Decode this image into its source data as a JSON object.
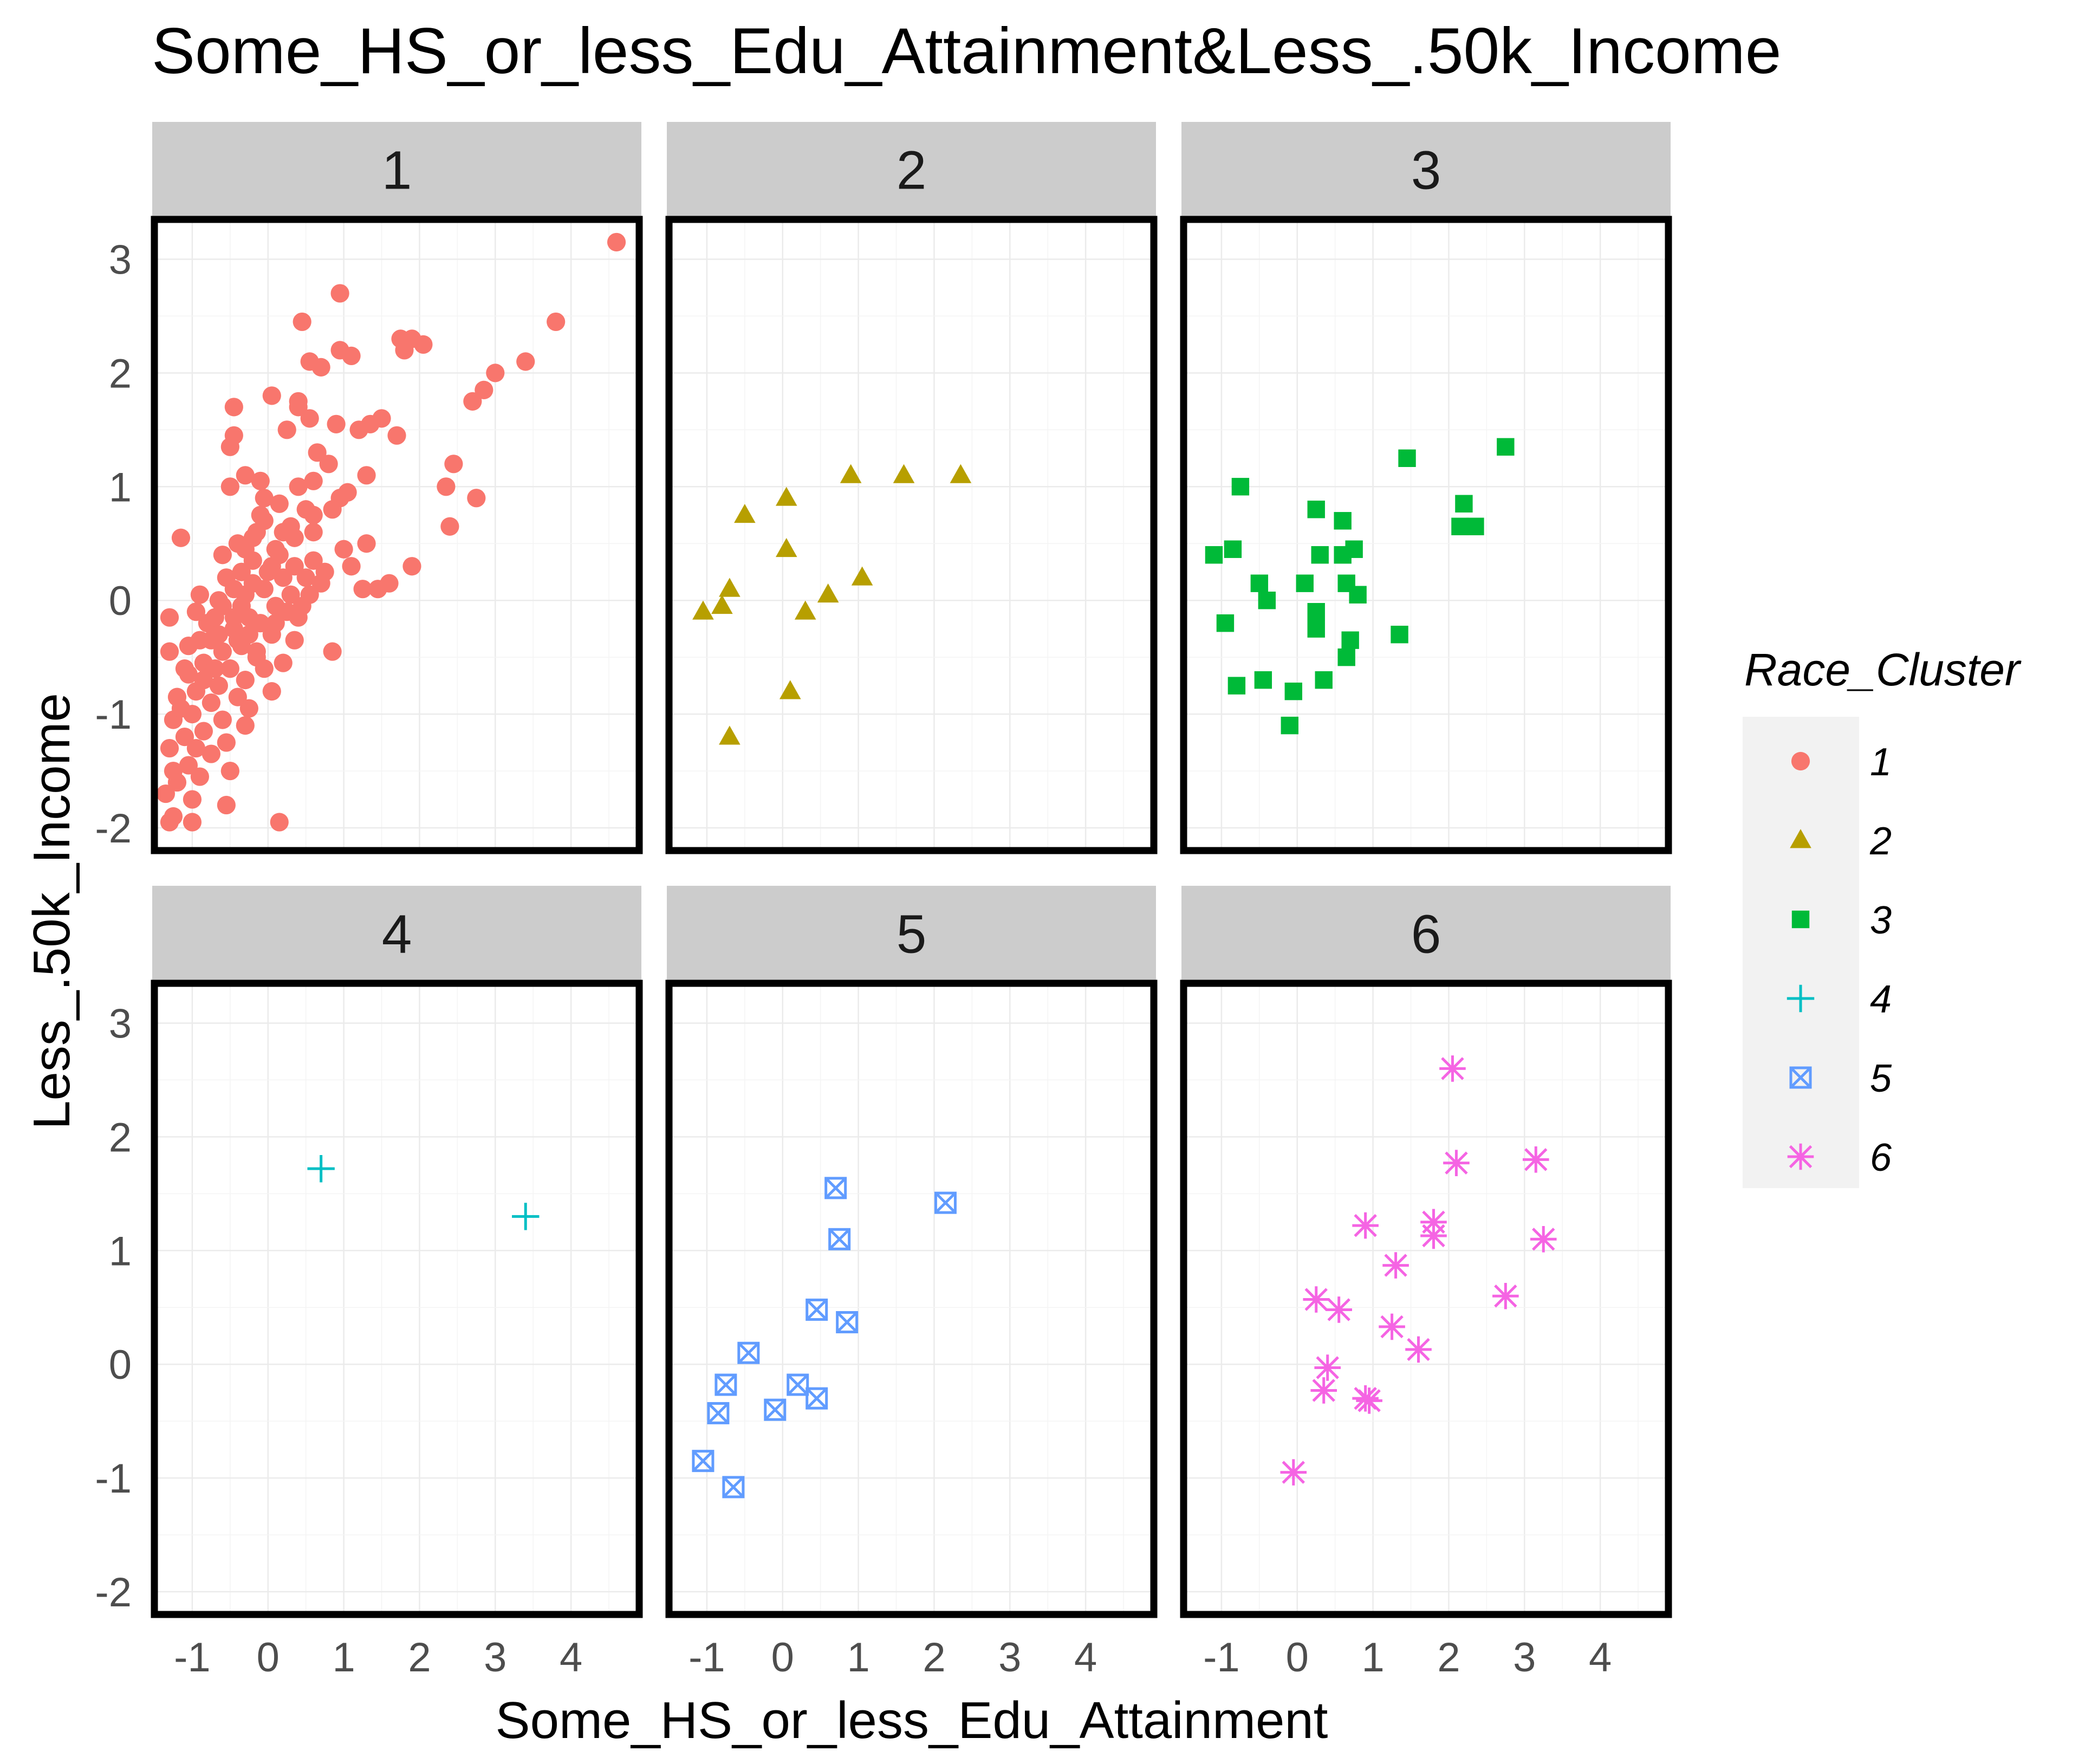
{
  "chart_data": {
    "type": "scatter",
    "title": "Some_HS_or_less_Edu_Attainment&Less_.50k_Income",
    "xlabel": "Some_HS_or_less_Edu_Attainment",
    "ylabel": "Less_.50k_Income",
    "xlim": [
      -1.5,
      4.9
    ],
    "ylim": [
      -2.2,
      3.35
    ],
    "x_ticks": [
      -1,
      0,
      1,
      2,
      3,
      4
    ],
    "y_ticks": [
      -2,
      -1,
      0,
      1,
      2,
      3
    ],
    "x_tick_labels": [
      "-1",
      "0",
      "1",
      "2",
      "3",
      "4"
    ],
    "y_tick_labels": [
      "-2",
      "-1",
      "0",
      "1",
      "2",
      "3"
    ],
    "grid": true,
    "facet_by": "Race_Cluster",
    "legend": {
      "title": "Race_Cluster",
      "position": "right",
      "items": [
        {
          "label": "1",
          "color": "#F8766D",
          "shape": "circle"
        },
        {
          "label": "2",
          "color": "#B79F00",
          "shape": "triangle"
        },
        {
          "label": "3",
          "color": "#00BA38",
          "shape": "square"
        },
        {
          "label": "4",
          "color": "#00BFC4",
          "shape": "plus"
        },
        {
          "label": "5",
          "color": "#619CFF",
          "shape": "square-x"
        },
        {
          "label": "6",
          "color": "#F564E3",
          "shape": "asterisk"
        }
      ]
    },
    "panels": [
      {
        "label": "1",
        "color": "#F8766D",
        "shape": "circle",
        "points": [
          [
            4.6,
            3.15
          ],
          [
            3.8,
            2.45
          ],
          [
            3.4,
            2.1
          ],
          [
            3.0,
            2.0
          ],
          [
            2.85,
            1.85
          ],
          [
            2.7,
            1.75
          ],
          [
            2.45,
            1.2
          ],
          [
            2.35,
            1.0
          ],
          [
            2.4,
            0.65
          ],
          [
            2.75,
            0.9
          ],
          [
            1.9,
            2.3
          ],
          [
            2.05,
            2.25
          ],
          [
            1.8,
            2.2
          ],
          [
            1.75,
            2.3
          ],
          [
            1.5,
            1.6
          ],
          [
            1.35,
            1.55
          ],
          [
            1.2,
            1.5
          ],
          [
            1.3,
            1.1
          ],
          [
            1.7,
            1.45
          ],
          [
            1.6,
            0.15
          ],
          [
            1.45,
            0.1
          ],
          [
            1.3,
            0.5
          ],
          [
            1.25,
            0.1
          ],
          [
            1.9,
            0.3
          ],
          [
            1.1,
            0.3
          ],
          [
            1.0,
            0.45
          ],
          [
            0.85,
            -0.45
          ],
          [
            0.95,
            2.2
          ],
          [
            1.1,
            2.15
          ],
          [
            0.95,
            2.7
          ],
          [
            0.45,
            2.45
          ],
          [
            0.55,
            2.1
          ],
          [
            0.7,
            2.05
          ],
          [
            0.4,
            1.75
          ],
          [
            0.05,
            1.8
          ],
          [
            0.4,
            1.7
          ],
          [
            0.55,
            1.6
          ],
          [
            -0.45,
            1.7
          ],
          [
            -0.45,
            1.45
          ],
          [
            0.9,
            1.55
          ],
          [
            0.25,
            1.5
          ],
          [
            -0.5,
            1.35
          ],
          [
            0.65,
            1.3
          ],
          [
            0.8,
            1.2
          ],
          [
            0.6,
            1.05
          ],
          [
            0.4,
            1.0
          ],
          [
            -0.3,
            1.1
          ],
          [
            -0.1,
            1.05
          ],
          [
            -0.5,
            1.0
          ],
          [
            -0.05,
            0.9
          ],
          [
            0.95,
            0.9
          ],
          [
            1.05,
            0.95
          ],
          [
            0.15,
            0.85
          ],
          [
            0.5,
            0.8
          ],
          [
            0.85,
            0.8
          ],
          [
            -0.05,
            0.7
          ],
          [
            0.3,
            0.65
          ],
          [
            0.6,
            0.6
          ],
          [
            -0.2,
            0.55
          ],
          [
            -1.15,
            0.55
          ],
          [
            -0.4,
            0.5
          ],
          [
            0.1,
            0.45
          ],
          [
            0.6,
            0.35
          ],
          [
            0.35,
            0.3
          ],
          [
            -0.35,
            0.25
          ],
          [
            0.75,
            0.25
          ],
          [
            0.2,
            0.2
          ],
          [
            0.5,
            0.2
          ],
          [
            0.7,
            0.15
          ],
          [
            -0.05,
            0.1
          ],
          [
            0.3,
            0.05
          ],
          [
            0.55,
            0.05
          ],
          [
            -0.9,
            0.05
          ],
          [
            -0.65,
            0.0
          ],
          [
            0.1,
            -0.05
          ],
          [
            -0.6,
            -0.05
          ],
          [
            -0.25,
            -0.15
          ],
          [
            0.4,
            -0.15
          ],
          [
            -0.95,
            -0.1
          ],
          [
            -1.3,
            -0.15
          ],
          [
            -0.45,
            -0.25
          ],
          [
            0.05,
            -0.3
          ],
          [
            0.35,
            -0.35
          ],
          [
            -0.75,
            -0.35
          ],
          [
            -0.35,
            -0.4
          ],
          [
            -1.3,
            -0.45
          ],
          [
            -0.6,
            -0.45
          ],
          [
            -0.15,
            -0.5
          ],
          [
            0.2,
            -0.55
          ],
          [
            -0.85,
            -0.55
          ],
          [
            -0.5,
            -0.6
          ],
          [
            -1.1,
            -0.6
          ],
          [
            -0.3,
            -0.7
          ],
          [
            -0.65,
            -0.75
          ],
          [
            0.05,
            -0.8
          ],
          [
            -0.95,
            -0.8
          ],
          [
            -0.4,
            -0.85
          ],
          [
            -1.2,
            -0.85
          ],
          [
            -0.75,
            -0.9
          ],
          [
            -1.0,
            -1.0
          ],
          [
            -0.6,
            -1.05
          ],
          [
            -1.25,
            -1.05
          ],
          [
            -0.3,
            -1.1
          ],
          [
            -0.85,
            -1.15
          ],
          [
            -1.1,
            -1.2
          ],
          [
            -0.55,
            -1.25
          ],
          [
            -1.3,
            -1.3
          ],
          [
            -0.95,
            -1.3
          ],
          [
            -0.75,
            -1.35
          ],
          [
            -1.05,
            -1.45
          ],
          [
            -1.25,
            -1.5
          ],
          [
            -0.9,
            -1.55
          ],
          [
            -1.2,
            -1.6
          ],
          [
            -1.35,
            -1.7
          ],
          [
            -1.0,
            -1.75
          ],
          [
            -0.55,
            -1.8
          ],
          [
            -1.25,
            -1.9
          ],
          [
            -1.0,
            -1.95
          ],
          [
            -1.3,
            -1.95
          ],
          [
            0.15,
            -1.95
          ],
          [
            -0.2,
            0.35
          ],
          [
            -0.15,
            0.6
          ],
          [
            0.0,
            0.25
          ],
          [
            0.15,
            0.4
          ],
          [
            -0.1,
            -0.2
          ],
          [
            0.25,
            -0.1
          ],
          [
            -0.3,
            0.05
          ],
          [
            -0.55,
            0.2
          ],
          [
            -0.8,
            -0.2
          ],
          [
            -1.05,
            -0.4
          ],
          [
            -0.7,
            -0.6
          ],
          [
            -0.4,
            -0.35
          ],
          [
            0.2,
            0.6
          ],
          [
            -0.25,
            -0.95
          ],
          [
            -0.85,
            -0.7
          ],
          [
            -1.15,
            -0.95
          ],
          [
            -0.45,
            0.1
          ],
          [
            0.45,
            -0.05
          ],
          [
            -0.05,
            -0.6
          ],
          [
            -0.6,
            0.4
          ],
          [
            0.05,
            0.3
          ],
          [
            -0.2,
            0.15
          ],
          [
            -0.35,
            -0.05
          ],
          [
            -0.7,
            -0.15
          ],
          [
            -0.9,
            -0.35
          ],
          [
            -1.05,
            -0.65
          ],
          [
            -0.5,
            -1.5
          ],
          [
            -0.15,
            -0.45
          ],
          [
            0.6,
            0.75
          ],
          [
            -0.1,
            0.75
          ],
          [
            -0.25,
            -0.3
          ],
          [
            -0.45,
            -0.15
          ],
          [
            -0.65,
            -0.3
          ],
          [
            0.1,
            -0.2
          ],
          [
            0.35,
            0.55
          ],
          [
            -0.3,
            0.45
          ]
        ]
      },
      {
        "label": "2",
        "color": "#B79F00",
        "shape": "triangle",
        "points": [
          [
            2.35,
            1.1
          ],
          [
            1.6,
            1.1
          ],
          [
            0.9,
            1.1
          ],
          [
            0.05,
            0.9
          ],
          [
            -0.5,
            0.75
          ],
          [
            0.05,
            0.45
          ],
          [
            1.05,
            0.2
          ],
          [
            -0.7,
            0.1
          ],
          [
            0.6,
            0.05
          ],
          [
            -0.8,
            -0.05
          ],
          [
            -1.05,
            -0.1
          ],
          [
            0.3,
            -0.1
          ],
          [
            0.1,
            -0.8
          ],
          [
            -0.7,
            -1.2
          ]
        ]
      },
      {
        "label": "3",
        "color": "#00BA38",
        "shape": "square",
        "points": [
          [
            2.75,
            1.35
          ],
          [
            1.45,
            1.25
          ],
          [
            -0.75,
            1.0
          ],
          [
            0.25,
            0.8
          ],
          [
            2.2,
            0.85
          ],
          [
            0.6,
            0.7
          ],
          [
            2.15,
            0.65
          ],
          [
            2.35,
            0.65
          ],
          [
            -0.85,
            0.45
          ],
          [
            0.75,
            0.45
          ],
          [
            -1.1,
            0.4
          ],
          [
            0.3,
            0.4
          ],
          [
            0.6,
            0.4
          ],
          [
            -0.5,
            0.15
          ],
          [
            0.1,
            0.15
          ],
          [
            0.65,
            0.15
          ],
          [
            0.8,
            0.05
          ],
          [
            -0.4,
            0.0
          ],
          [
            0.25,
            -0.1
          ],
          [
            -0.95,
            -0.2
          ],
          [
            0.25,
            -0.25
          ],
          [
            1.35,
            -0.3
          ],
          [
            0.7,
            -0.35
          ],
          [
            0.65,
            -0.5
          ],
          [
            -0.45,
            -0.7
          ],
          [
            0.35,
            -0.7
          ],
          [
            -0.8,
            -0.75
          ],
          [
            -0.05,
            -0.8
          ],
          [
            -0.1,
            -1.1
          ]
        ]
      },
      {
        "label": "4",
        "color": "#00BFC4",
        "shape": "plus",
        "points": [
          [
            0.7,
            1.72
          ],
          [
            3.4,
            1.3
          ]
        ]
      },
      {
        "label": "5",
        "color": "#619CFF",
        "shape": "square-x",
        "points": [
          [
            0.7,
            1.55
          ],
          [
            2.15,
            1.42
          ],
          [
            0.75,
            1.1
          ],
          [
            0.45,
            0.48
          ],
          [
            0.85,
            0.37
          ],
          [
            -0.45,
            0.1
          ],
          [
            -0.75,
            -0.18
          ],
          [
            0.2,
            -0.18
          ],
          [
            0.45,
            -0.3
          ],
          [
            -0.1,
            -0.4
          ],
          [
            -0.85,
            -0.43
          ],
          [
            -1.05,
            -0.85
          ],
          [
            -0.65,
            -1.08
          ]
        ]
      },
      {
        "label": "6",
        "color": "#F564E3",
        "shape": "asterisk",
        "points": [
          [
            2.05,
            2.6
          ],
          [
            3.15,
            1.8
          ],
          [
            2.1,
            1.77
          ],
          [
            1.8,
            1.25
          ],
          [
            0.9,
            1.22
          ],
          [
            1.8,
            1.13
          ],
          [
            3.25,
            1.1
          ],
          [
            1.3,
            0.87
          ],
          [
            2.75,
            0.6
          ],
          [
            0.25,
            0.57
          ],
          [
            0.55,
            0.48
          ],
          [
            1.25,
            0.33
          ],
          [
            1.6,
            0.13
          ],
          [
            0.4,
            -0.03
          ],
          [
            0.35,
            -0.23
          ],
          [
            0.9,
            -0.3
          ],
          [
            0.95,
            -0.32
          ],
          [
            -0.05,
            -0.95
          ]
        ]
      }
    ]
  }
}
